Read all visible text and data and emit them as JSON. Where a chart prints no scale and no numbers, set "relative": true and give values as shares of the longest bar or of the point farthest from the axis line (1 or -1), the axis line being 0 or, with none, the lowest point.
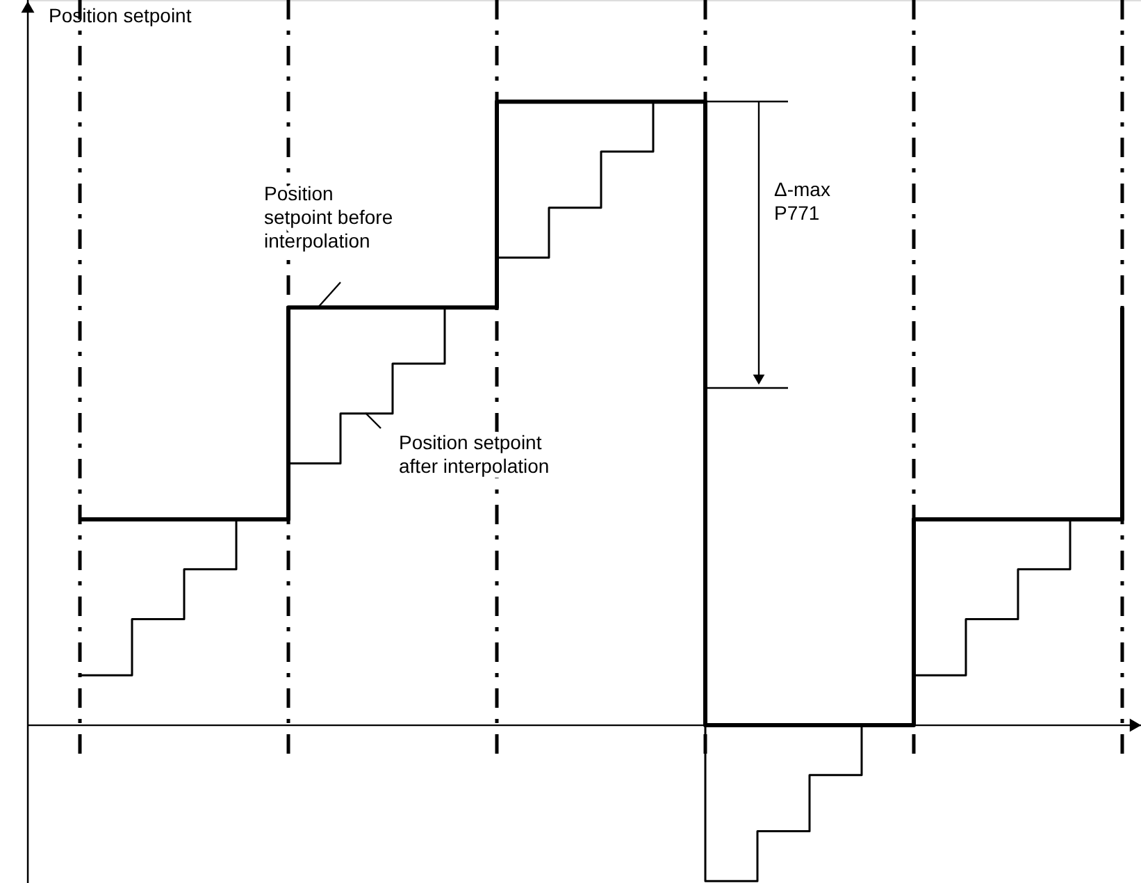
{
  "chart_data": {
    "type": "step",
    "ylabel": "Position setpoint",
    "relative": true,
    "categories": [
      null,
      null,
      null,
      null,
      null,
      null,
      null,
      null,
      null,
      null,
      null,
      null,
      null,
      null,
      null,
      null,
      null,
      null,
      null,
      null,
      null
    ],
    "series": [
      {
        "color": "#000000",
        "values": [
          0.33,
          0.33,
          0.33,
          0.33,
          0.67,
          0.67,
          0.67,
          0.67,
          1,
          1,
          1,
          1,
          0,
          0,
          0,
          0,
          0.33,
          0.33,
          0.33,
          0.33,
          0.67
        ]
      },
      {
        "color": "#000000",
        "values": [
          0.08,
          0.17,
          0.25,
          0.33,
          0.42,
          0.5,
          0.58,
          0.67,
          0.75,
          0.83,
          0.92,
          1,
          -0.25,
          -0.17,
          -0.08,
          0,
          0.08,
          0.17,
          0.25,
          0.33,
          0.33
        ]
      }
    ],
    "grid": "x",
    "marker": "none",
    "line_style": "solid",
    "annotations": [
      "Position setpoint before interpolation",
      "Position setpoint after interpolation",
      "Δ-max P771"
    ]
  }
}
